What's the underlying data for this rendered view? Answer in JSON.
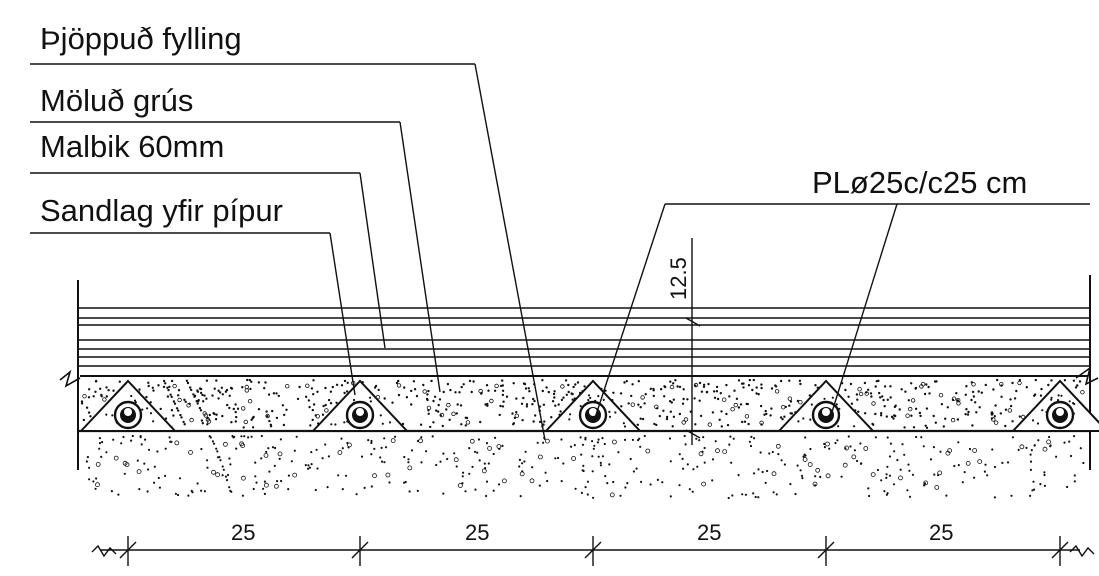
{
  "labels": {
    "compacted_fill": "Þjöppuð fylling",
    "crushed_gravel": "Möluð grús",
    "asphalt": "Malbik 60mm",
    "sand_layer": "Sandlag yfir pípur",
    "pipe_spec": "PLø25c/c25 cm"
  },
  "dimensions": {
    "depth": "12.5",
    "spacing": [
      "25",
      "25",
      "25",
      "25"
    ]
  },
  "colors": {
    "ink": "#111111",
    "background": "#ffffff"
  }
}
